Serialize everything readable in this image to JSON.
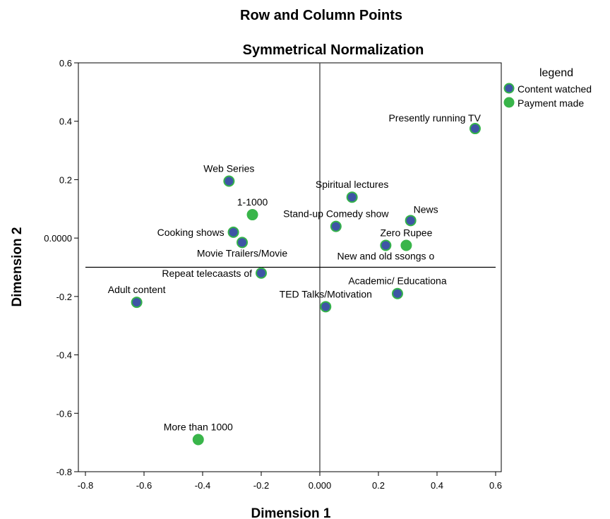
{
  "colors": {
    "content_watched_fill": "#3e55a5",
    "content_watched_stroke": "#34b34a",
    "payment_made_fill": "#39b54a",
    "payment_made_stroke": "#39b54a",
    "axis": "#000000",
    "reference_line": "#5a5a5a"
  },
  "chart_data": {
    "type": "scatter",
    "title": "Row and Column Points",
    "subtitle": "Symmetrical Normalization",
    "xlabel": "Dimension 1",
    "ylabel": "Dimension 2",
    "xlim": [
      -0.82,
      0.62
    ],
    "ylim": [
      -0.8,
      0.6
    ],
    "x_ticks": [
      -0.8,
      -0.6,
      -0.4,
      -0.2,
      0.0,
      0.2,
      0.4,
      0.6
    ],
    "x_tick_labels": [
      "-0.8",
      "-0.6",
      "-0.4",
      "-0.2",
      "0.000",
      "0.2",
      "0.4",
      "0.6"
    ],
    "y_ticks": [
      0.6,
      0.4,
      0.2,
      0.0,
      -0.2,
      -0.4,
      -0.6,
      -0.8
    ],
    "y_tick_labels": [
      "0.6",
      "0.4",
      "0.2",
      "0.0000",
      "-0.2",
      "-0.4",
      "-0.6",
      "-0.8"
    ],
    "reference_lines": {
      "vertical_x": 0.0,
      "horizontal_y": -0.1
    },
    "legend": {
      "title": "legend",
      "position": "outside top-right",
      "items": [
        {
          "label": "Content watched",
          "series": "content"
        },
        {
          "label": "Payment made",
          "series": "payment"
        }
      ]
    },
    "series": [
      {
        "name": "Content watched",
        "key": "content",
        "points": [
          {
            "label": "Presently running TV",
            "x": 0.53,
            "y": 0.375,
            "label_pos": "above-left"
          },
          {
            "label": "Web Series",
            "x": -0.31,
            "y": 0.195,
            "label_pos": "above"
          },
          {
            "label": "Spiritual lectures",
            "x": 0.11,
            "y": 0.14,
            "label_pos": "above"
          },
          {
            "label": "News",
            "x": 0.31,
            "y": 0.06,
            "label_pos": "above-right"
          },
          {
            "label": "Stand-up Comedy show",
            "x": 0.055,
            "y": 0.04,
            "label_pos": "above"
          },
          {
            "label": "Cooking shows",
            "x": -0.295,
            "y": 0.02,
            "label_pos": "left"
          },
          {
            "label": "Movie Trailers/Movie",
            "x": -0.265,
            "y": -0.015,
            "label_pos": "below"
          },
          {
            "label": "New and old ssongs o",
            "x": 0.225,
            "y": -0.025,
            "label_pos": "below"
          },
          {
            "label": "Repeat telecaasts of",
            "x": -0.2,
            "y": -0.12,
            "label_pos": "left"
          },
          {
            "label": "Academic/ Educationa",
            "x": 0.265,
            "y": -0.19,
            "label_pos": "above"
          },
          {
            "label": "TED Talks/Motivation",
            "x": 0.02,
            "y": -0.235,
            "label_pos": "above"
          },
          {
            "label": "Adult content",
            "x": -0.625,
            "y": -0.22,
            "label_pos": "above"
          }
        ]
      },
      {
        "name": "Payment made",
        "key": "payment",
        "points": [
          {
            "label": "1-1000",
            "x": -0.23,
            "y": 0.08,
            "label_pos": "above"
          },
          {
            "label": "Zero Rupee",
            "x": 0.295,
            "y": -0.025,
            "label_pos": "above"
          },
          {
            "label": "More than 1000",
            "x": -0.415,
            "y": -0.69,
            "label_pos": "above"
          }
        ]
      }
    ]
  }
}
